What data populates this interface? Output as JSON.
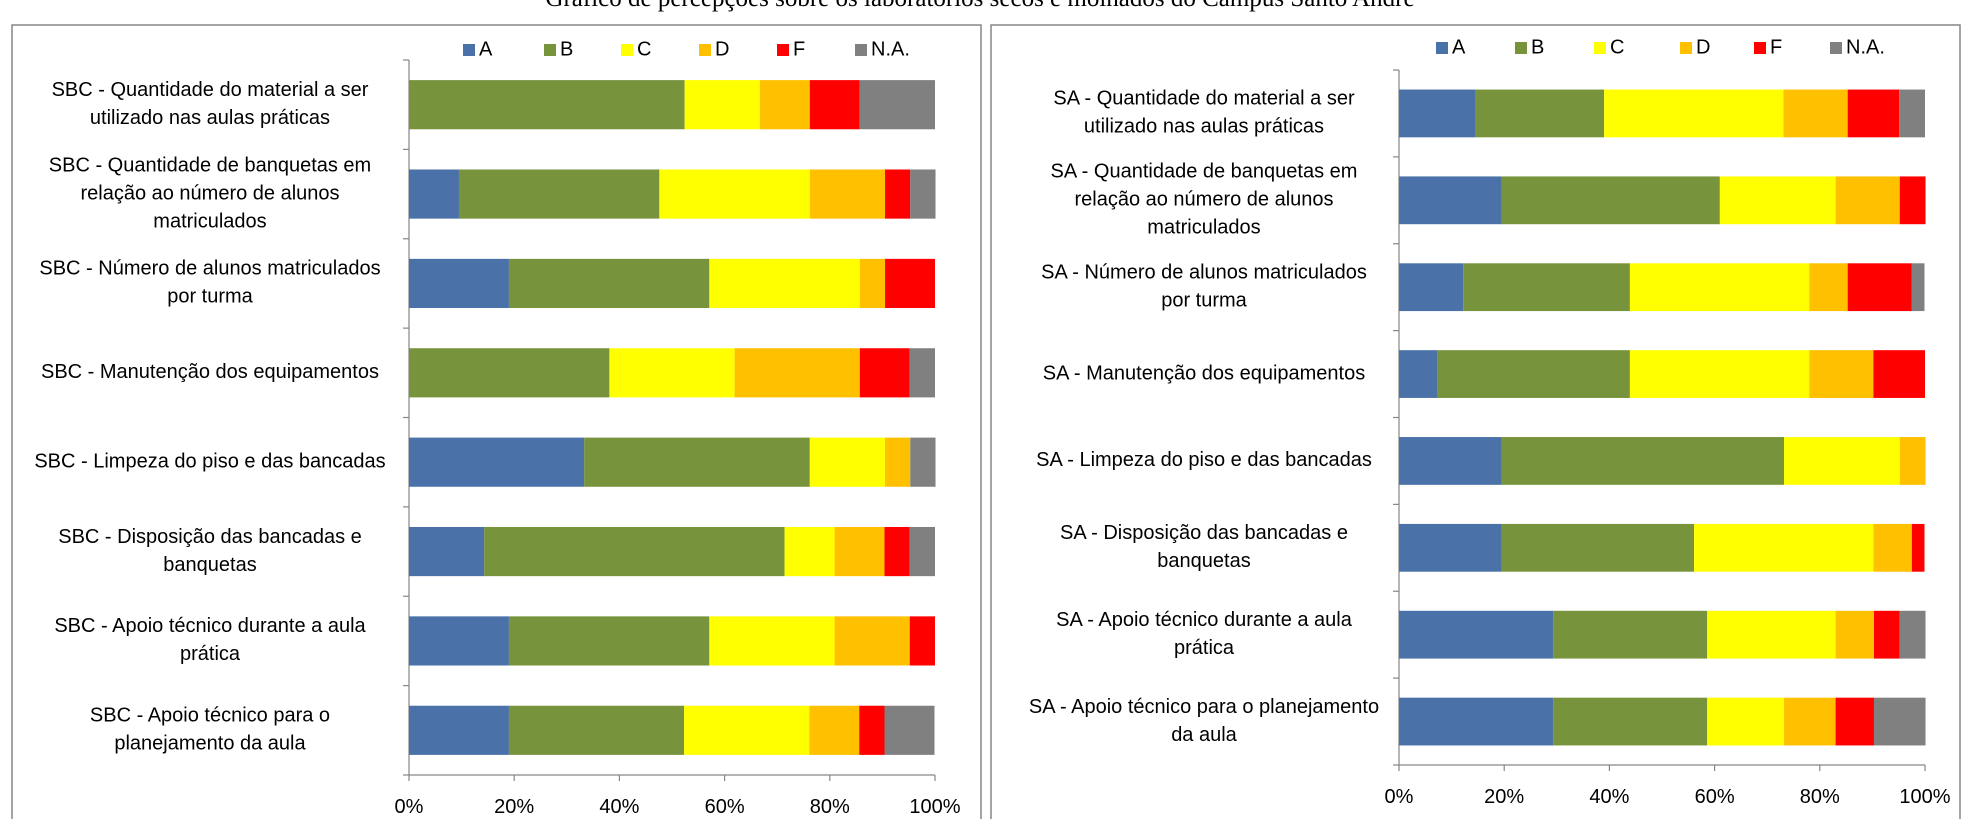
{
  "title": "Gráfico de percepções sobre os laboratórios secos e molhados do Campus Santo André",
  "chart_data": [
    {
      "type": "stacked-bar-horizontal",
      "categories": [
        [
          "SBC - Quantidade do material a ser",
          "utilizado nas aulas práticas"
        ],
        [
          "SBC - Quantidade de banquetas em",
          "relação ao número de alunos",
          "matriculados"
        ],
        [
          "SBC - Número de alunos matriculados",
          "por turma"
        ],
        [
          "SBC - Manutenção dos equipamentos"
        ],
        [
          "SBC - Limpeza do piso e das bancadas"
        ],
        [
          "SBC - Disposição das bancadas e",
          "banquetas"
        ],
        [
          "SBC - Apoio técnico durante a aula",
          "prática"
        ],
        [
          "SBC - Apoio técnico para o",
          "planejamento da aula"
        ]
      ],
      "series": [
        {
          "name": "A",
          "color": "#4a72a8",
          "values": [
            0,
            9.5,
            19.0,
            0,
            33.3,
            14.3,
            19.0,
            19.0
          ]
        },
        {
          "name": "B",
          "color": "#77933c",
          "values": [
            52.4,
            38.1,
            38.1,
            38.1,
            42.9,
            57.1,
            38.1,
            33.3
          ]
        },
        {
          "name": "C",
          "color": "#ffff00",
          "values": [
            14.3,
            28.6,
            28.6,
            23.8,
            14.3,
            9.5,
            23.8,
            23.8
          ]
        },
        {
          "name": "D",
          "color": "#ffc000",
          "values": [
            9.5,
            14.3,
            4.8,
            23.8,
            4.8,
            9.5,
            14.3,
            9.5
          ]
        },
        {
          "name": "F",
          "color": "#ff0000",
          "values": [
            9.5,
            4.8,
            9.5,
            9.5,
            0,
            4.8,
            4.8,
            4.8
          ]
        },
        {
          "name": "N.A.",
          "color": "#808080",
          "values": [
            14.3,
            4.8,
            0,
            4.8,
            4.8,
            4.8,
            0,
            9.5
          ]
        }
      ],
      "xlim": [
        0,
        100
      ],
      "xticks": [
        {
          "value": 0,
          "label": "0%"
        },
        {
          "value": 20,
          "label": "20%"
        },
        {
          "value": 40,
          "label": "40%"
        },
        {
          "value": 60,
          "label": "60%"
        },
        {
          "value": 80,
          "label": "80%"
        },
        {
          "value": 100,
          "label": "100%"
        }
      ],
      "legend": "top"
    },
    {
      "type": "stacked-bar-horizontal",
      "categories": [
        [
          "SA - Quantidade do material a ser",
          "utilizado nas aulas práticas"
        ],
        [
          "SA - Quantidade de banquetas em",
          "relação ao número de alunos",
          "matriculados"
        ],
        [
          "SA - Número de alunos matriculados",
          "por turma"
        ],
        [
          "SA - Manutenção dos equipamentos"
        ],
        [
          "SA - Limpeza do piso e das bancadas"
        ],
        [
          "SA - Disposição das bancadas e",
          "banquetas"
        ],
        [
          "SA - Apoio técnico durante a aula",
          "prática"
        ],
        [
          "SA - Apoio técnico para o planejamento",
          "da aula"
        ]
      ],
      "series": [
        {
          "name": "A",
          "color": "#4a72a8",
          "values": [
            14.6,
            19.5,
            12.2,
            7.3,
            19.5,
            19.5,
            29.3,
            29.3
          ]
        },
        {
          "name": "B",
          "color": "#77933c",
          "values": [
            24.4,
            41.5,
            31.7,
            36.6,
            53.7,
            36.6,
            29.3,
            29.3
          ]
        },
        {
          "name": "C",
          "color": "#ffff00",
          "values": [
            34.1,
            22.0,
            34.1,
            34.1,
            22.0,
            34.1,
            24.4,
            14.6
          ]
        },
        {
          "name": "D",
          "color": "#ffc000",
          "values": [
            12.2,
            12.2,
            7.3,
            12.2,
            4.9,
            7.3,
            7.3,
            9.8
          ]
        },
        {
          "name": "F",
          "color": "#ff0000",
          "values": [
            9.8,
            4.9,
            12.2,
            9.8,
            0,
            2.4,
            4.9,
            7.3
          ]
        },
        {
          "name": "N.A.",
          "color": "#808080",
          "values": [
            4.9,
            0,
            2.4,
            0,
            0,
            0,
            4.9,
            9.8
          ]
        }
      ],
      "xlim": [
        0,
        100
      ],
      "xticks": [
        {
          "value": 0,
          "label": "0%"
        },
        {
          "value": 20,
          "label": "20%"
        },
        {
          "value": 40,
          "label": "40%"
        },
        {
          "value": 60,
          "label": "60%"
        },
        {
          "value": 80,
          "label": "80%"
        },
        {
          "value": 100,
          "label": "100%"
        }
      ],
      "legend": "top"
    }
  ]
}
